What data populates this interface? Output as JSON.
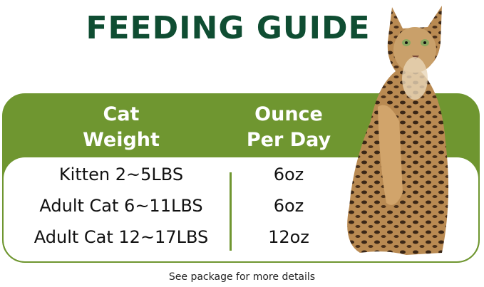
{
  "title": "FEEDING GUIDE",
  "table": {
    "headers": [
      "Cat\nWeight",
      "Ounce\nPer Day"
    ],
    "header_lines": [
      [
        "Cat",
        "Weight"
      ],
      [
        "Ounce",
        "Per Day"
      ]
    ],
    "rows": [
      {
        "weight": "Kitten 2~5LBS",
        "ounces": "6oz"
      },
      {
        "weight": "Adult Cat 6~11LBS",
        "ounces": "6oz"
      },
      {
        "weight": "Adult Cat 12~17LBS",
        "ounces": "12oz"
      }
    ]
  },
  "footnote": "See package for more details",
  "colors": {
    "title": "#0f4d32",
    "accent": "#6f9630"
  }
}
